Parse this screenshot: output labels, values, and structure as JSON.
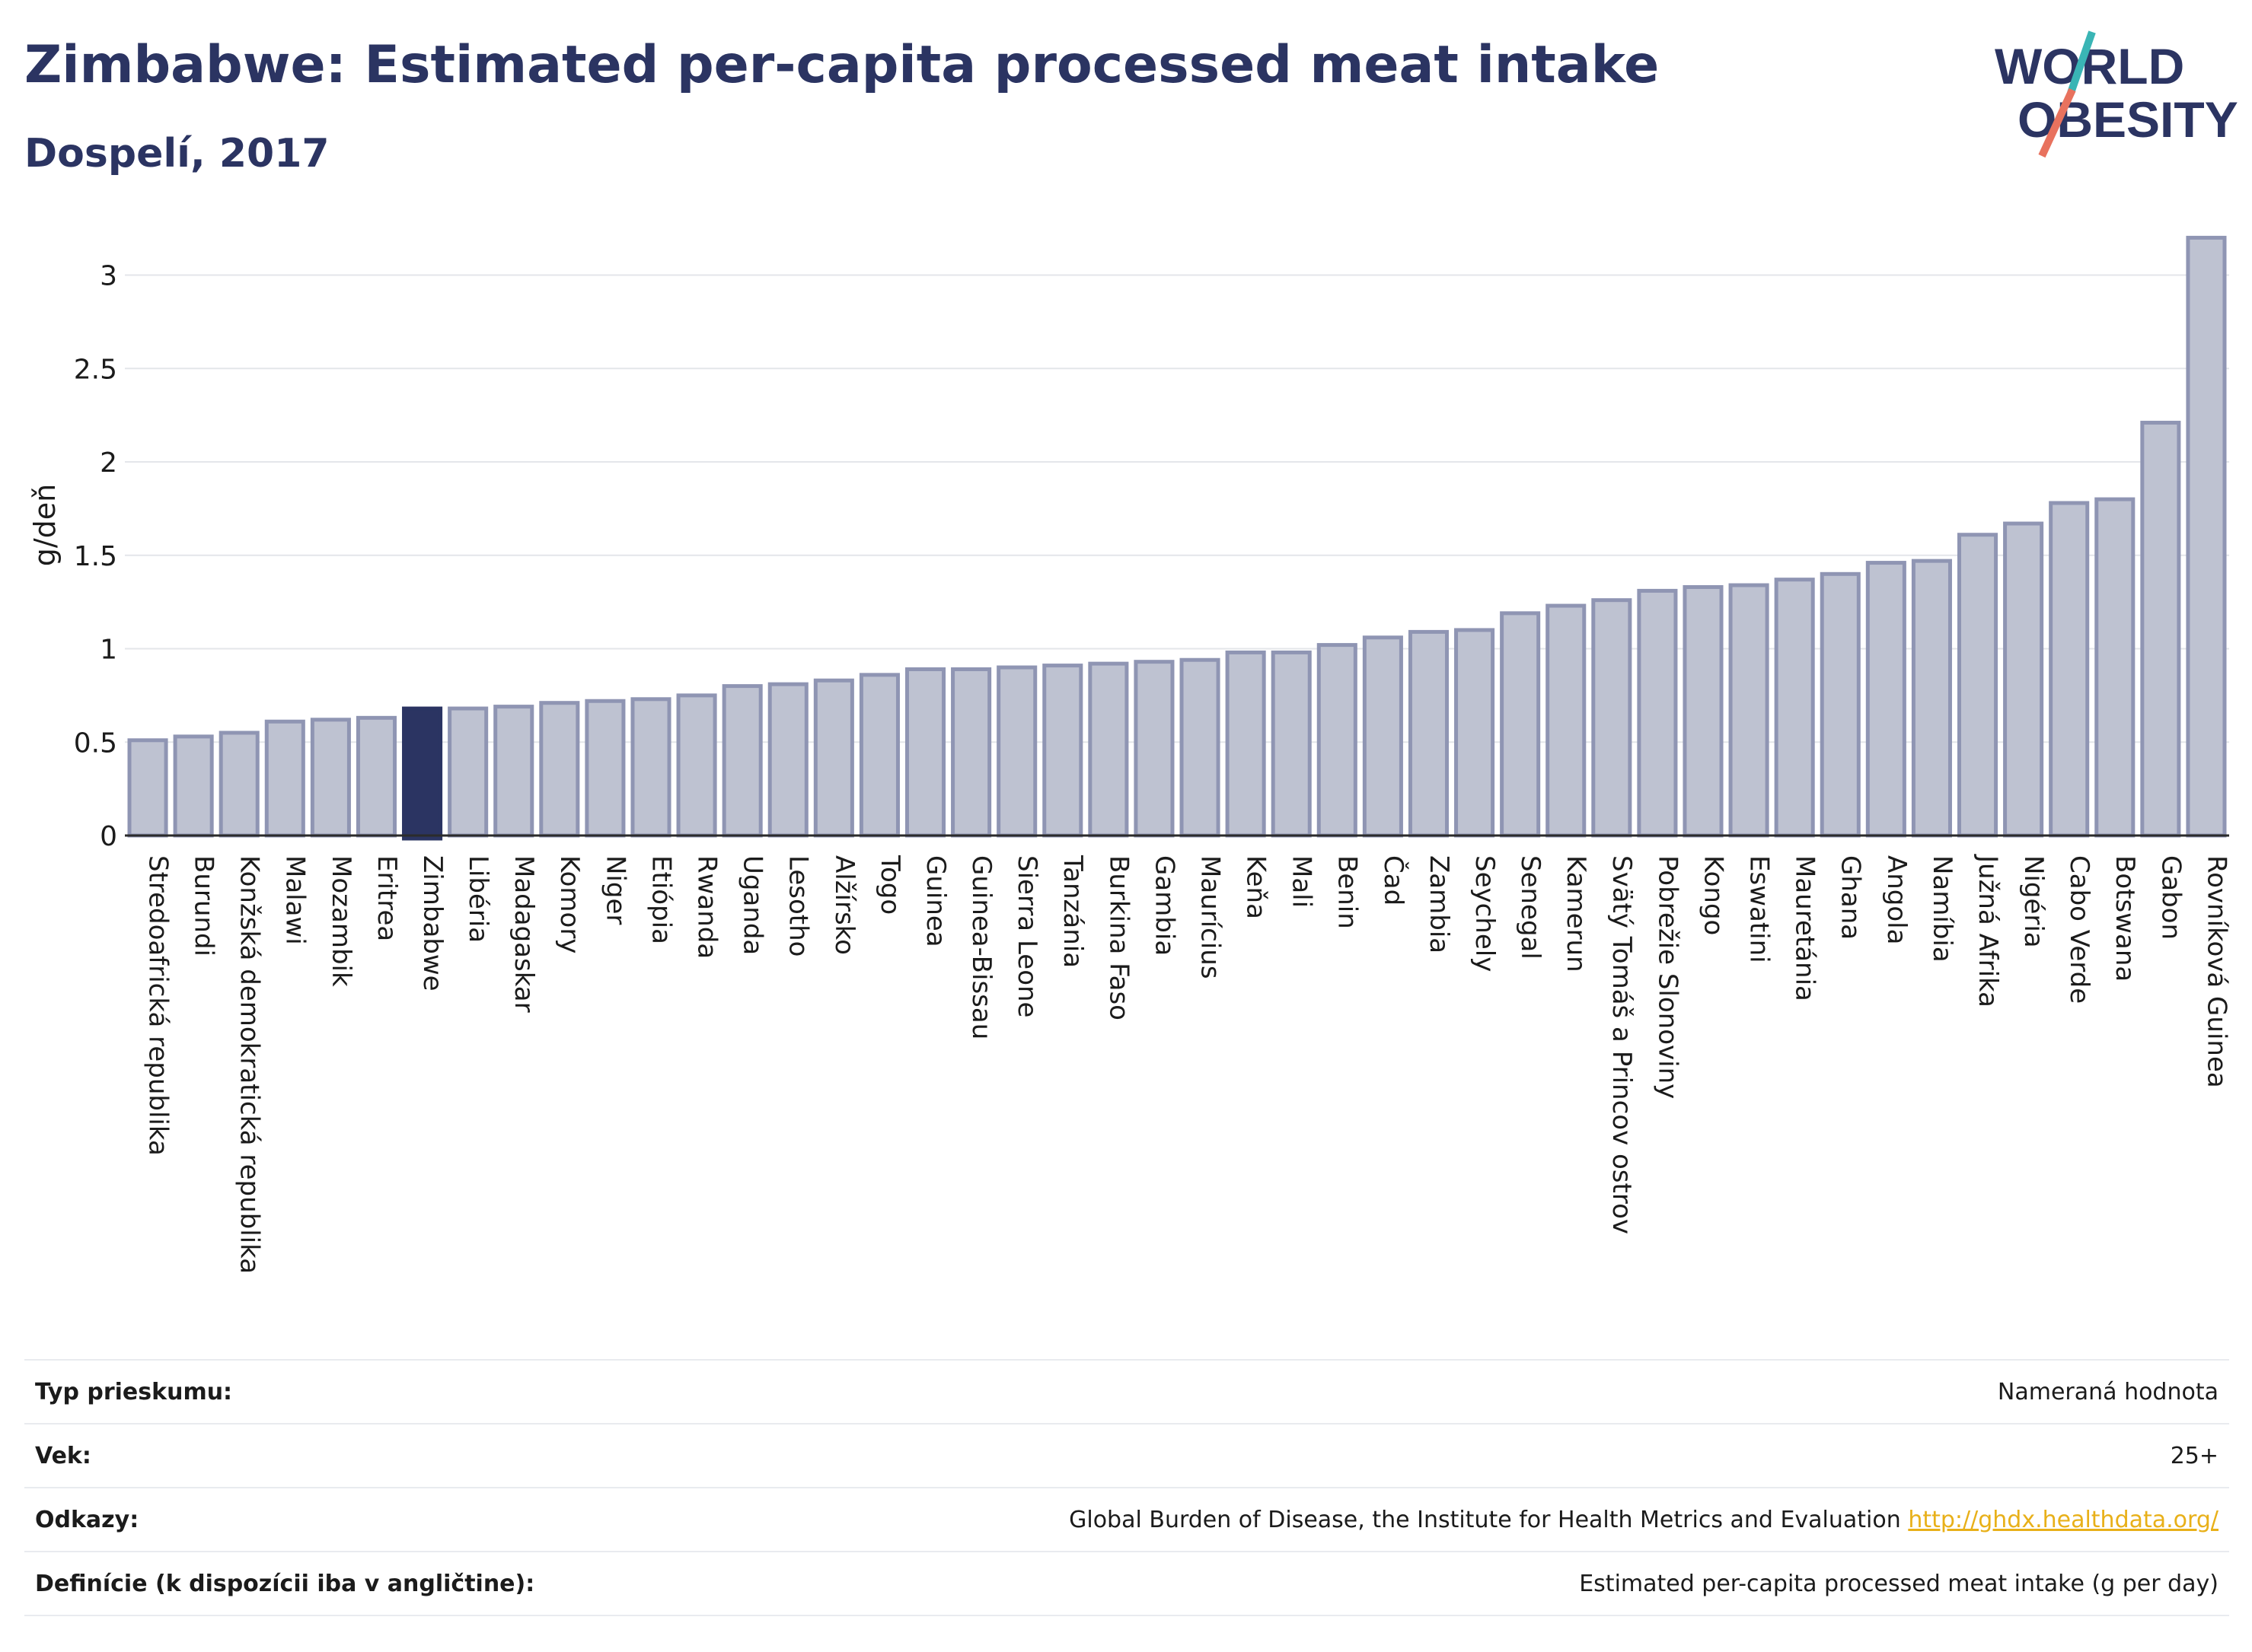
{
  "header": {
    "title": "Zimbabwe: Estimated per-capita processed meat intake",
    "subtitle": "Dospelí, 2017"
  },
  "logo": {
    "line1": "WORLD",
    "line2": "OBESITY"
  },
  "colors": {
    "bar": "#bec2d1",
    "bar_border": "#8f95b3",
    "highlight": "#2b3462",
    "text": "#2b3462"
  },
  "chart_data": {
    "type": "bar",
    "ylabel": "g/deň",
    "ylim": [
      0,
      3.3
    ],
    "yticks": [
      0,
      0.5,
      1,
      1.5,
      2,
      2.5,
      3
    ],
    "ytick_labels": [
      "0",
      "0.5",
      "1",
      "1.5",
      "2",
      "2.5",
      "3"
    ],
    "highlight": "Zimbabwe",
    "categories": [
      "Stredoafrická republika",
      "Burundi",
      "Konžská demokratická republika",
      "Malawi",
      "Mozambik",
      "Eritrea",
      "Zimbabwe",
      "Libéria",
      "Madagaskar",
      "Komory",
      "Niger",
      "Etiópia",
      "Rwanda",
      "Uganda",
      "Lesotho",
      "Alžírsko",
      "Togo",
      "Guinea",
      "Guinea-Bissau",
      "Sierra Leone",
      "Tanzánia",
      "Burkina Faso",
      "Gambia",
      "Maurícius",
      "Keňa",
      "Mali",
      "Benin",
      "Čad",
      "Zambia",
      "Seychely",
      "Senegal",
      "Kamerun",
      "Svätý Tomáš a Princov ostrov",
      "Pobrežie Slonoviny",
      "Kongo",
      "Eswatini",
      "Mauretánia",
      "Ghana",
      "Angola",
      "Namíbia",
      "Južná Afrika",
      "Nigéria",
      "Cabo Verde",
      "Botswana",
      "Gabon",
      "Rovníková Guinea"
    ],
    "values": [
      0.51,
      0.53,
      0.55,
      0.61,
      0.62,
      0.63,
      0.68,
      0.68,
      0.69,
      0.71,
      0.72,
      0.73,
      0.75,
      0.8,
      0.81,
      0.83,
      0.86,
      0.89,
      0.89,
      0.9,
      0.91,
      0.92,
      0.93,
      0.94,
      0.98,
      0.98,
      1.02,
      1.06,
      1.09,
      1.1,
      1.19,
      1.23,
      1.26,
      1.31,
      1.33,
      1.34,
      1.37,
      1.4,
      1.46,
      1.47,
      1.61,
      1.67,
      1.78,
      1.8,
      2.21,
      3.2
    ]
  },
  "info": [
    {
      "label": "Typ prieskumu:",
      "value": "Nameraná hodnota"
    },
    {
      "label": "Vek:",
      "value": "25+"
    },
    {
      "label": "Odkazy:",
      "value": "Global Burden of Disease, the Institute for Health Metrics and Evaluation",
      "link": "http://ghdx.healthdata.org/"
    },
    {
      "label": "Definície (k dispozícii iba v angličtine):",
      "value": "Estimated per-capita processed meat intake (g per day)"
    }
  ]
}
